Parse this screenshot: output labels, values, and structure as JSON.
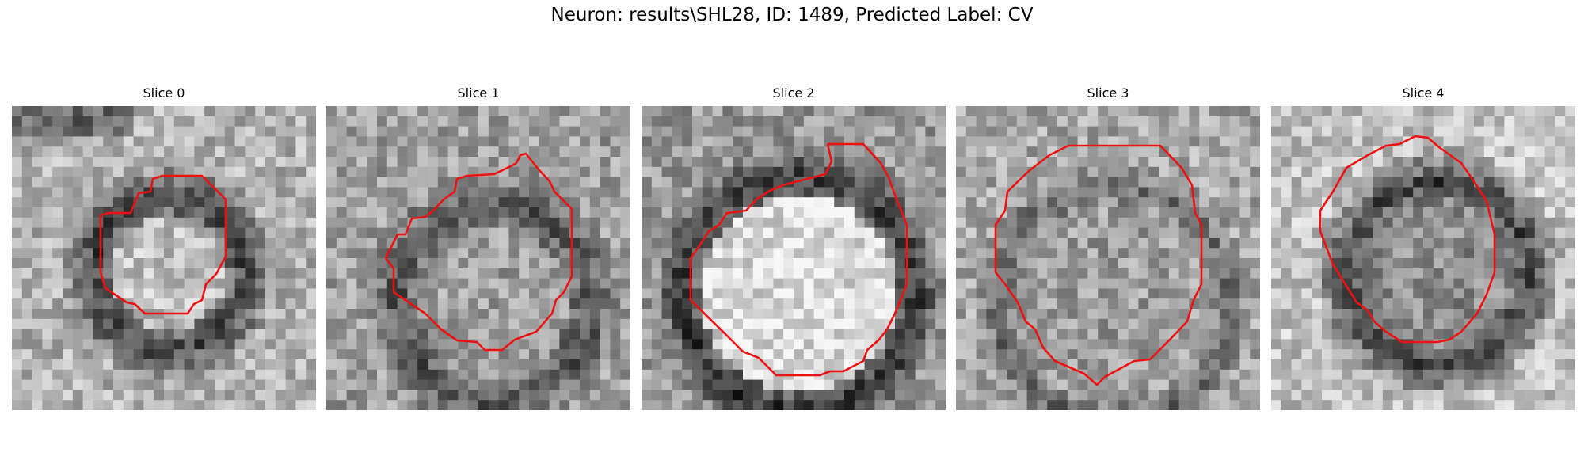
{
  "figure": {
    "title": "Neuron: results\\SHL28, ID: 1489, Predicted Label: CV",
    "contour_color": "#ee1111"
  },
  "panels": [
    {
      "title": "Slice 0"
    },
    {
      "title": "Slice 1"
    },
    {
      "title": "Slice 2"
    },
    {
      "title": "Slice 3"
    },
    {
      "title": "Slice 4"
    }
  ]
}
